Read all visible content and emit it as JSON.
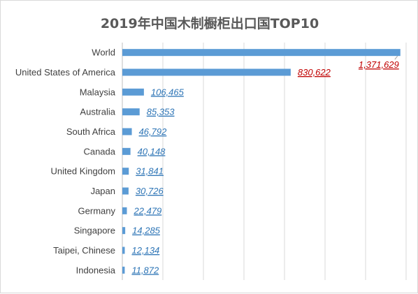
{
  "chart_data": {
    "type": "bar",
    "orientation": "horizontal",
    "title": "2019年中国木制橱柜出口国TOP10",
    "categories": [
      "World",
      "United States of America",
      "Malaysia",
      "Australia",
      "South Africa",
      "Canada",
      "United Kingdom",
      "Japan",
      "Germany",
      "Singapore",
      "Taipei, Chinese",
      "Indonesia"
    ],
    "values": [
      1371629,
      830622,
      106465,
      85353,
      46792,
      40148,
      31841,
      30726,
      22479,
      14285,
      12134,
      11872
    ],
    "value_labels": [
      "1,371,629",
      "830,622",
      "106,465",
      "85,353",
      "46,792",
      "40,148",
      "31,841",
      "30,726",
      "22,479",
      "14,285",
      "12,134",
      "11,872"
    ],
    "highlighted_labels": [
      0,
      1
    ],
    "xlim": [
      0,
      1400000
    ],
    "grid": true,
    "legend": "none",
    "colors": {
      "bar": "#5b9bd5",
      "label": "#2e75b6",
      "highlight_label": "#c00000",
      "grid": "#d9d9d9"
    }
  }
}
